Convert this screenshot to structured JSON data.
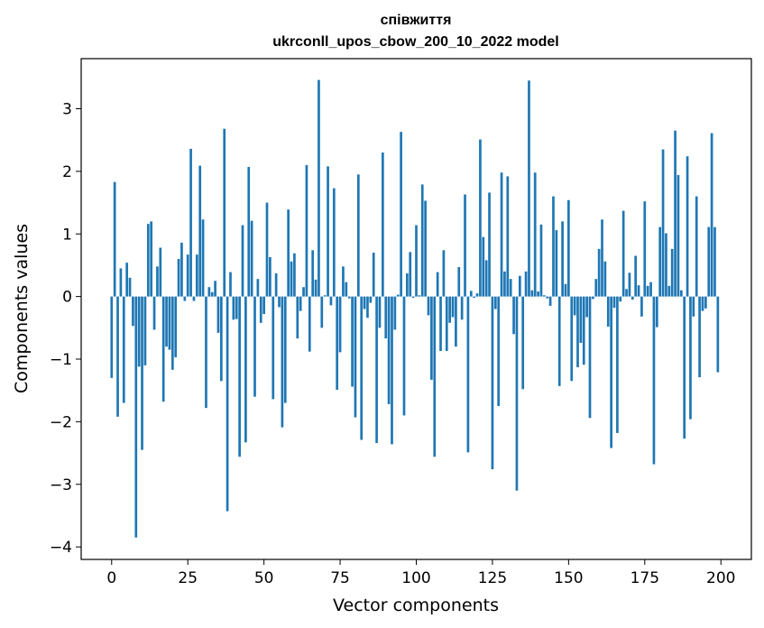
{
  "chart_data": {
    "type": "bar",
    "title_line1": "співжиття",
    "title_line2": "ukrconll_upos_cbow_200_10_2022 model",
    "xlabel": "Vector components",
    "ylabel": "Components values",
    "xlim": [
      -10,
      210
    ],
    "ylim": [
      -4.2,
      3.8
    ],
    "xticks": [
      0,
      25,
      50,
      75,
      100,
      125,
      150,
      175,
      200
    ],
    "xtick_labels": [
      "0",
      "25",
      "50",
      "75",
      "100",
      "125",
      "150",
      "175",
      "200"
    ],
    "yticks": [
      3,
      2,
      1,
      0,
      -1,
      -2,
      -3,
      -4
    ],
    "ytick_labels": [
      "3",
      "2",
      "1",
      "0",
      "−1",
      "−2",
      "−3",
      "−4"
    ],
    "bar_color": "#1f77b4",
    "grid": false,
    "x": [
      0,
      1,
      2,
      3,
      4,
      5,
      6,
      7,
      8,
      9,
      10,
      11,
      12,
      13,
      14,
      15,
      16,
      17,
      18,
      19,
      20,
      21,
      22,
      23,
      24,
      25,
      26,
      27,
      28,
      29,
      30,
      31,
      32,
      33,
      34,
      35,
      36,
      37,
      38,
      39,
      40,
      41,
      42,
      43,
      44,
      45,
      46,
      47,
      48,
      49,
      50,
      51,
      52,
      53,
      54,
      55,
      56,
      57,
      58,
      59,
      60,
      61,
      62,
      63,
      64,
      65,
      66,
      67,
      68,
      69,
      70,
      71,
      72,
      73,
      74,
      75,
      76,
      77,
      78,
      79,
      80,
      81,
      82,
      83,
      84,
      85,
      86,
      87,
      88,
      89,
      90,
      91,
      92,
      93,
      94,
      95,
      96,
      97,
      98,
      99,
      100,
      101,
      102,
      103,
      104,
      105,
      106,
      107,
      108,
      109,
      110,
      111,
      112,
      113,
      114,
      115,
      116,
      117,
      118,
      119,
      120,
      121,
      122,
      123,
      124,
      125,
      126,
      127,
      128,
      129,
      130,
      131,
      132,
      133,
      134,
      135,
      136,
      137,
      138,
      139,
      140,
      141,
      142,
      143,
      144,
      145,
      146,
      147,
      148,
      149,
      150,
      151,
      152,
      153,
      154,
      155,
      156,
      157,
      158,
      159,
      160,
      161,
      162,
      163,
      164,
      165,
      166,
      167,
      168,
      169,
      170,
      171,
      172,
      173,
      174,
      175,
      176,
      177,
      178,
      179,
      180,
      181,
      182,
      183,
      184,
      185,
      186,
      187,
      188,
      189,
      190,
      191,
      192,
      193,
      194,
      195,
      196,
      197,
      198,
      199
    ],
    "values": [
      -1.3,
      1.83,
      -1.92,
      0.45,
      -1.7,
      0.54,
      0.3,
      -0.47,
      -3.85,
      -1.12,
      -2.45,
      -1.1,
      1.16,
      1.2,
      -0.53,
      0.48,
      0.78,
      -1.68,
      -0.8,
      -0.85,
      -1.17,
      -0.97,
      0.6,
      0.86,
      -0.07,
      0.67,
      2.36,
      -0.07,
      0.67,
      2.09,
      1.23,
      -1.78,
      0.15,
      0.07,
      0.25,
      -0.58,
      -1.35,
      2.68,
      -3.43,
      0.39,
      -0.37,
      -0.36,
      -2.56,
      1.14,
      -2.33,
      2.07,
      1.21,
      -1.6,
      0.28,
      -0.42,
      -0.28,
      1.5,
      0.63,
      -1.64,
      0.37,
      -0.17,
      -2.09,
      -1.7,
      1.39,
      0.56,
      0.69,
      -0.67,
      -0.23,
      0.15,
      2.1,
      -0.88,
      0.74,
      0.27,
      3.46,
      -0.5,
      0.02,
      2.08,
      -0.14,
      1.73,
      -1.49,
      -0.89,
      0.48,
      0.23,
      -0.03,
      -1.44,
      -1.93,
      1.95,
      -2.29,
      -0.2,
      -0.34,
      -0.1,
      0.7,
      -2.34,
      -0.5,
      2.3,
      -0.67,
      -1.72,
      -2.36,
      -0.53,
      0.03,
      2.63,
      -1.9,
      0.37,
      0.71,
      -0.02,
      1.14,
      0.02,
      1.79,
      1.53,
      -0.3,
      -1.33,
      -2.56,
      0.39,
      -0.87,
      0.74,
      -0.87,
      -0.42,
      -0.33,
      -0.8,
      0.47,
      -0.37,
      1.63,
      -2.49,
      0.09,
      -0.02,
      0.05,
      2.51,
      0.95,
      0.58,
      1.66,
      -2.76,
      -0.2,
      -1.75,
      1.98,
      0.4,
      1.92,
      0.28,
      -0.6,
      -3.1,
      0.33,
      -1.48,
      0.4,
      3.45,
      0.1,
      1.98,
      0.08,
      1.15,
      0.02,
      -0.03,
      -0.15,
      1.6,
      1.06,
      -1.43,
      1.2,
      0.2,
      1.54,
      -1.35,
      -0.3,
      -1.13,
      -0.74,
      -1.09,
      -0.33,
      -1.94,
      -0.04,
      0.28,
      0.76,
      1.23,
      0.56,
      -0.48,
      -2.42,
      -0.18,
      -2.18,
      -0.08,
      1.37,
      0.12,
      0.38,
      -0.05,
      0.65,
      0.18,
      -0.32,
      1.52,
      0.17,
      0.23,
      -2.68,
      -0.49,
      1.11,
      2.35,
      1.01,
      0.17,
      0.76,
      2.65,
      1.94,
      0.1,
      -2.27,
      2.24,
      -1.96,
      -0.32,
      1.6,
      -1.29,
      -0.23,
      -0.19,
      1.11,
      2.61,
      1.11,
      -1.21
    ]
  }
}
